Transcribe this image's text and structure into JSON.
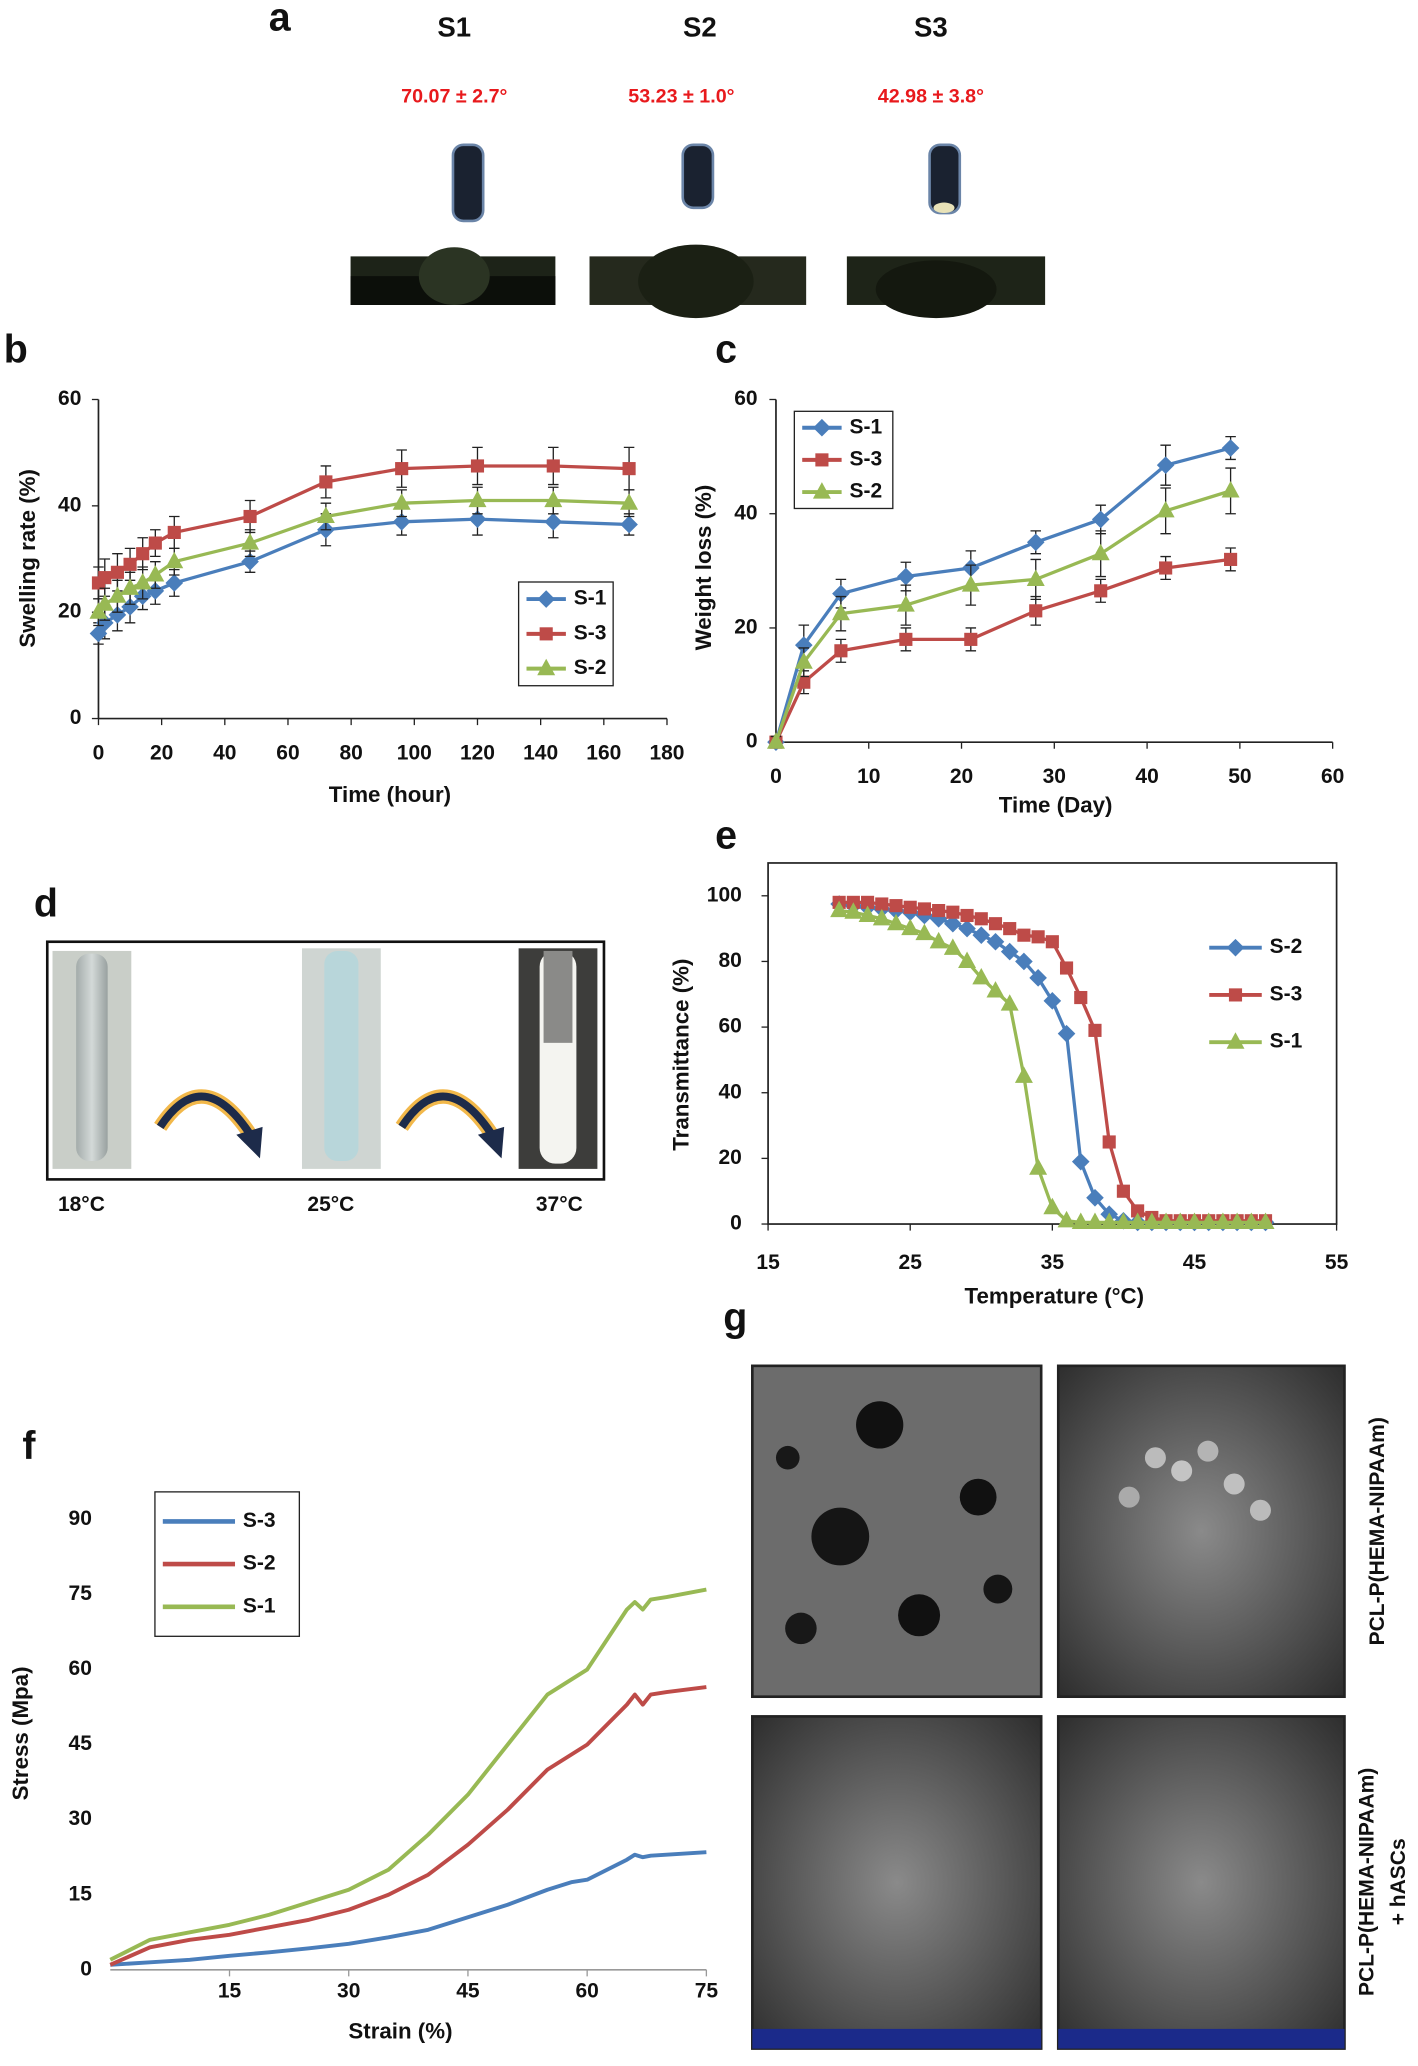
{
  "panel_a": {
    "label": "a",
    "samples": [
      {
        "name": "S1",
        "contact_angle": "70.07 ± 2.7°"
      },
      {
        "name": "S2",
        "contact_angle": "53.23 ± 1.0°"
      },
      {
        "name": "S3",
        "contact_angle": "42.98 ± 3.8°"
      }
    ]
  },
  "panel_d": {
    "label": "d",
    "temperatures": [
      "18°C",
      "25°C",
      "37°C"
    ]
  },
  "panel_g": {
    "label": "g",
    "row_labels": [
      [
        "PCL-P(HEMA-NIPAAm)"
      ],
      [
        "PCL-P(HEMA-NIPAAm)",
        "+ hASCs"
      ]
    ]
  },
  "chart_data": [
    {
      "label": "b",
      "type": "line",
      "x_label": "Time (hour)",
      "y_label": "Swelling rate (%)",
      "x": [
        0,
        2,
        6,
        10,
        14,
        18,
        24,
        48,
        72,
        96,
        120,
        144,
        168
      ],
      "xlim": [
        0,
        180
      ],
      "xticks": [
        0,
        20,
        40,
        60,
        80,
        100,
        120,
        140,
        160,
        180
      ],
      "ylim": [
        0,
        60
      ],
      "yticks": [
        0,
        20,
        40,
        60
      ],
      "legend": "lower right",
      "series": [
        {
          "name": "S-1",
          "color": "#4a7ebb",
          "marker": "diamond",
          "values": [
            16,
            18,
            19.5,
            21,
            23,
            24,
            25.5,
            29.5,
            35.5,
            37,
            37.5,
            37,
            36.5
          ],
          "errors": [
            2,
            3,
            3,
            3,
            2.5,
            2.5,
            2.5,
            2,
            3,
            2.5,
            3,
            3,
            2
          ]
        },
        {
          "name": "S-3",
          "color": "#be4b48",
          "marker": "square",
          "values": [
            25.5,
            26.5,
            27.5,
            29,
            31,
            33,
            35,
            38,
            44.5,
            47,
            47.5,
            47.5,
            47
          ],
          "errors": [
            3,
            3.5,
            3.5,
            3,
            3,
            2.5,
            3,
            3,
            3,
            3.5,
            3.5,
            3.5,
            4
          ]
        },
        {
          "name": "S-2",
          "color": "#98b954",
          "marker": "triangle",
          "values": [
            20,
            21.5,
            23,
            24.5,
            25.5,
            27,
            29.5,
            33,
            38,
            40.5,
            41,
            41,
            40.5
          ],
          "errors": [
            2.5,
            3,
            3,
            3,
            3,
            2.5,
            2.5,
            2.5,
            2.5,
            2.5,
            2.5,
            2.5,
            2.5
          ]
        }
      ]
    },
    {
      "label": "c",
      "type": "line",
      "x_label": "Time (Day)",
      "y_label": "Weight loss (%)",
      "x": [
        0,
        3,
        7,
        14,
        21,
        28,
        35,
        42,
        49
      ],
      "xlim": [
        0,
        60
      ],
      "xticks": [
        0,
        10,
        20,
        30,
        40,
        50,
        60
      ],
      "ylim": [
        0,
        60
      ],
      "yticks": [
        0,
        20,
        40,
        60
      ],
      "legend": "upper left",
      "series": [
        {
          "name": "S-1",
          "color": "#4a7ebb",
          "marker": "diamond",
          "values": [
            0,
            17,
            26,
            29,
            30.5,
            35,
            39,
            48.5,
            51.5
          ],
          "errors": [
            1,
            3.5,
            2.5,
            2.5,
            3,
            2,
            2.5,
            3.5,
            2
          ]
        },
        {
          "name": "S-3",
          "color": "#be4b48",
          "marker": "square",
          "values": [
            0,
            10.5,
            16,
            18,
            18,
            23,
            26.5,
            30.5,
            32
          ],
          "errors": [
            1,
            2,
            2,
            2,
            2,
            2.5,
            2,
            2,
            2
          ]
        },
        {
          "name": "S-2",
          "color": "#98b954",
          "marker": "triangle",
          "values": [
            0,
            14,
            22.5,
            24,
            27.5,
            28.5,
            33,
            40.5,
            44
          ],
          "errors": [
            1,
            2.5,
            3,
            3.5,
            3.5,
            3.5,
            4,
            4,
            4
          ]
        }
      ]
    },
    {
      "label": "e",
      "type": "line",
      "x_label": "Temperature (°C)",
      "y_label": "Transmittance (%)",
      "x": [
        20,
        21,
        22,
        23,
        24,
        25,
        26,
        27,
        28,
        29,
        30,
        31,
        32,
        33,
        34,
        35,
        36,
        37,
        38,
        39,
        40,
        41,
        42,
        43,
        44,
        45,
        46,
        47,
        48,
        49,
        50
      ],
      "xlim": [
        15,
        55
      ],
      "xticks": [
        15,
        25,
        35,
        45,
        55
      ],
      "ylim": [
        0,
        110
      ],
      "yticks": [
        0,
        20,
        40,
        60,
        80,
        100
      ],
      "legend": "upper right",
      "series": [
        {
          "name": "S-2",
          "color": "#4a7ebb",
          "marker": "diamond",
          "values": [
            97.5,
            97,
            96.5,
            96,
            95.5,
            95,
            94,
            93,
            91.5,
            90,
            88,
            86,
            83,
            80,
            75,
            68,
            58,
            19,
            8,
            3,
            1,
            0.5,
            0.5,
            0.5,
            0.5,
            0.5,
            0.5,
            0.5,
            0.5,
            0.5,
            0.5
          ]
        },
        {
          "name": "S-3",
          "color": "#be4b48",
          "marker": "square",
          "values": [
            98,
            98,
            98,
            97.5,
            97,
            96.5,
            96,
            95.5,
            95,
            94,
            93,
            91.5,
            90,
            88,
            87.5,
            86,
            78,
            69,
            59,
            25,
            10,
            4,
            2,
            1,
            1,
            1,
            1,
            1,
            1,
            1,
            1
          ]
        },
        {
          "name": "S-1",
          "color": "#98b954",
          "marker": "triangle",
          "values": [
            95.5,
            95,
            94,
            93,
            91.5,
            90,
            88.5,
            86,
            84,
            80,
            75,
            71,
            67,
            45,
            17,
            5,
            1,
            0.5,
            0.5,
            0.5,
            0.5,
            0.5,
            0.5,
            0.5,
            0.5,
            0.5,
            0.5,
            0.5,
            0.5,
            0.5,
            0.5
          ]
        }
      ]
    },
    {
      "label": "f",
      "type": "line",
      "x_label": "Strain (%)",
      "y_label": "Stress (Mpa)",
      "x": [
        0,
        5,
        10,
        15,
        20,
        25,
        30,
        35,
        40,
        45,
        50,
        55,
        58,
        60,
        65,
        66,
        67,
        68,
        70,
        75
      ],
      "xlim": [
        0,
        75
      ],
      "xticks": [
        15,
        30,
        45,
        60,
        75
      ],
      "ylim": [
        0,
        90
      ],
      "yticks": [
        0,
        15,
        30,
        45,
        60,
        75,
        90
      ],
      "legend": "upper left",
      "series": [
        {
          "name": "S-3",
          "color": "#4a7ebb",
          "values": [
            1,
            1.5,
            2,
            2.8,
            3.5,
            4.3,
            5.2,
            6.5,
            8,
            10.5,
            13,
            16,
            17.5,
            18,
            22,
            23,
            22.5,
            22.8,
            23,
            23.5
          ]
        },
        {
          "name": "S-2",
          "color": "#be4b48",
          "values": [
            1,
            4.5,
            6,
            7,
            8.5,
            10,
            12,
            15,
            19,
            25,
            32,
            40,
            43,
            45,
            53,
            55,
            53,
            55,
            55.5,
            56.5
          ]
        },
        {
          "name": "S-1",
          "color": "#98b954",
          "values": [
            2,
            6,
            7.5,
            9,
            11,
            13.5,
            16,
            20,
            27,
            35,
            45,
            55,
            58,
            60,
            72,
            73.5,
            72,
            74,
            74.5,
            76
          ]
        }
      ]
    }
  ]
}
